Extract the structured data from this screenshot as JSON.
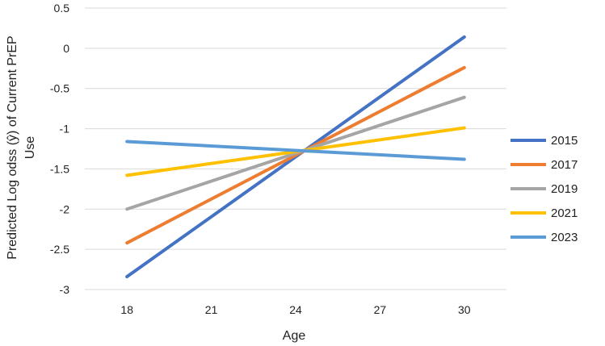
{
  "chart_data": {
    "type": "line",
    "title": "",
    "xlabel": "Age",
    "ylabel_line1": "Predicted Log odss (ŷ) of Current PrEP",
    "ylabel_line2": "Use",
    "x_ticks": [
      "18",
      "21",
      "24",
      "27",
      "30"
    ],
    "y_ticks": [
      "0.5",
      "0",
      "-0.5",
      "-1",
      "-1.5",
      "-2",
      "-2.5",
      "-3"
    ],
    "xlim": [
      16.5,
      31.5
    ],
    "ylim": [
      -3,
      0.5
    ],
    "grid": "horizontal",
    "legend_position": "right",
    "x": [
      18,
      30
    ],
    "series": [
      {
        "name": "2015",
        "color": "#4472C4",
        "values": [
          -2.84,
          0.14
        ]
      },
      {
        "name": "2017",
        "color": "#ED7D31",
        "values": [
          -2.42,
          -0.24
        ]
      },
      {
        "name": "2019",
        "color": "#A5A5A5",
        "values": [
          -2.0,
          -0.61
        ]
      },
      {
        "name": "2021",
        "color": "#FFC000",
        "values": [
          -1.58,
          -0.99
        ]
      },
      {
        "name": "2023",
        "color": "#5B9BD5",
        "values": [
          -1.16,
          -1.38
        ]
      }
    ]
  }
}
